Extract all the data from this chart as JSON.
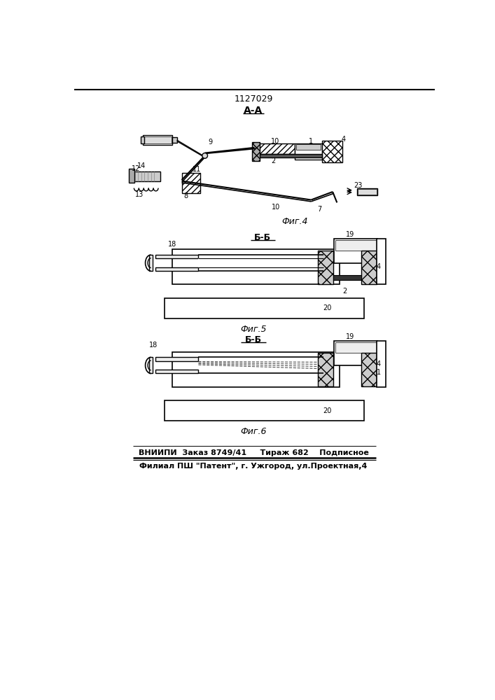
{
  "patent_number": "1127029",
  "section_aa": "А-А",
  "section_bb1": "Б-Б",
  "section_bb2": "Б-Б",
  "fig4_label": "Фиг.4",
  "fig5_label": "Фиг.5",
  "fig6_label": "Фиг.6",
  "footer_line1": "ВНИИПИ  Заказ 8749/41     Тираж 682    Подписное",
  "footer_line2": "Филиал ПШ \"Патент\", г. Ужгород, ул.Проектная,4",
  "bg_color": "#ffffff",
  "fig_width": 7.07,
  "fig_height": 10.0,
  "dpi": 100
}
